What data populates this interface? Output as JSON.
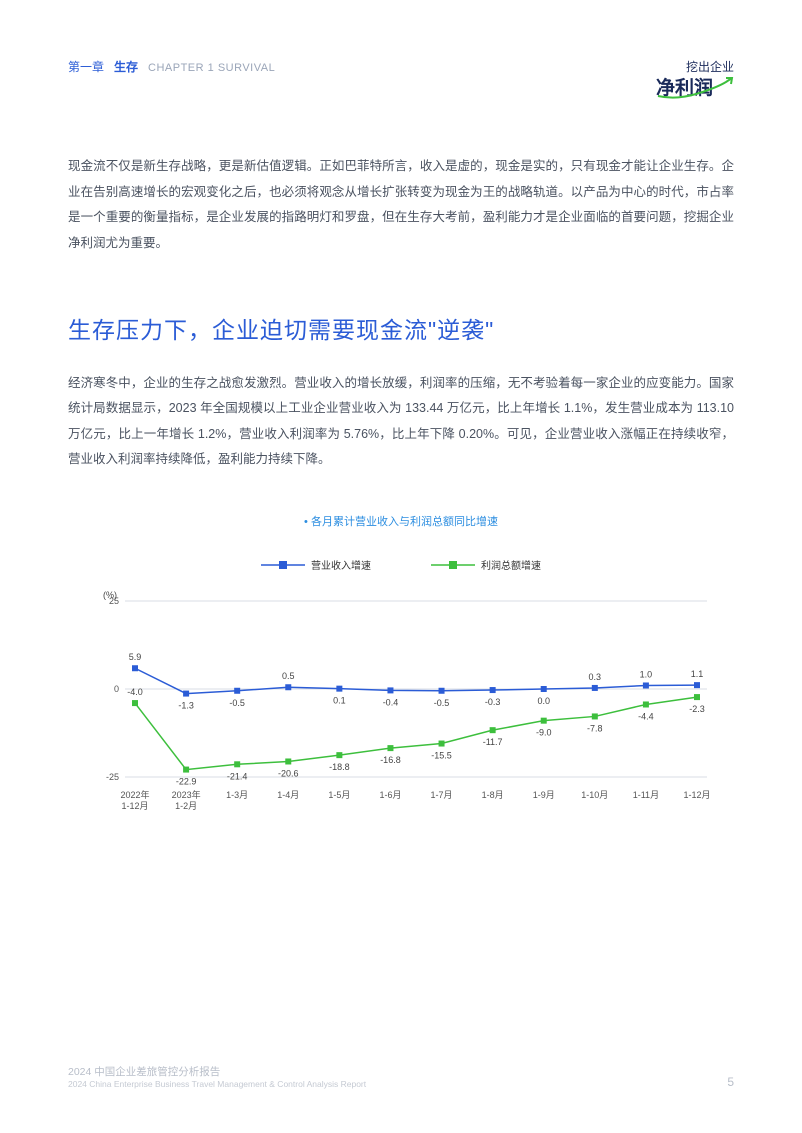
{
  "header": {
    "chapter_zh_prefix": "第一章",
    "chapter_zh_word": "生存",
    "chapter_en": "CHAPTER 1  SURVIVAL",
    "logo_top": "挖出企业",
    "logo_main": "净利润"
  },
  "intro_para": "现金流不仅是新生存战略，更是新估值逻辑。正如巴菲特所言，收入是虚的，现金是实的，只有现金才能让企业生存。企业在告别高速增长的宏观变化之后，也必须将观念从增长扩张转变为现金为王的战略轨道。以产品为中心的时代，市占率是一个重要的衡量指标，是企业发展的指路明灯和罗盘，但在生存大考前，盈利能力才是企业面临的首要问题，挖掘企业净利润尤为重要。",
  "section_title": "生存压力下，企业迫切需要现金流\"逆袭\"",
  "body_para": "经济寒冬中，企业的生存之战愈发激烈。营业收入的增长放缓，利润率的压缩，无不考验着每一家企业的应变能力。国家统计局数据显示，2023 年全国规模以上工业企业营业收入为 133.44 万亿元，比上年增长 1.1%，发生营业成本为 113.10 万亿元，比上一年增长 1.2%，营业收入利润率为 5.76%，比上年下降 0.20%。可见，企业营业收入涨幅正在持续收窄，营业收入利润率持续降低，盈利能力持续下降。",
  "chart": {
    "caption": "• 各月累计营业收入与利润总额同比增速",
    "type": "line",
    "legend": {
      "series1": "营业收入增速",
      "series2": "利润总额增速"
    },
    "y_axis_label": "(%)",
    "y_ticks": [
      25,
      0,
      -25
    ],
    "categories": [
      "2022年\n1-12月",
      "2023年\n1-2月",
      "1-3月",
      "1-4月",
      "1-5月",
      "1-6月",
      "1-7月",
      "1-8月",
      "1-9月",
      "1-10月",
      "1-11月",
      "1-12月"
    ],
    "series1_values": [
      5.9,
      -1.3,
      -0.5,
      0.5,
      0.1,
      -0.4,
      -0.5,
      -0.3,
      0.0,
      0.3,
      1.0,
      1.1
    ],
    "series2_values": [
      -4.0,
      -22.9,
      -21.4,
      -20.6,
      -18.8,
      -16.8,
      -15.5,
      -11.7,
      -9.0,
      -7.8,
      -4.4,
      -2.3
    ],
    "colors": {
      "series1": "#2b5cd6",
      "series2": "#3dbf3d",
      "grid": "#d9dde4",
      "background": "#ffffff"
    },
    "line_width": 1.5,
    "marker_size": 6,
    "label_fontsize": 9,
    "ylim": [
      -27,
      27
    ]
  },
  "footer": {
    "title_zh": "2024 中国企业差旅管控分析报告",
    "title_en": "2024 China Enterprise Business Travel Management & Control Analysis Report",
    "page": "5"
  }
}
